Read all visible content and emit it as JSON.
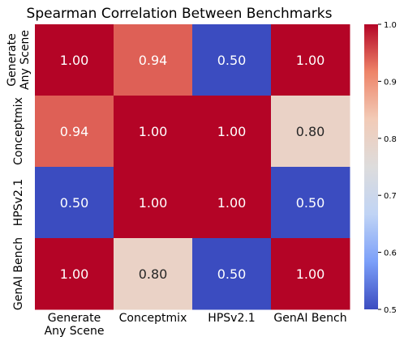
{
  "chart_data": {
    "type": "heatmap",
    "title": "Spearman Correlation Between Benchmarks",
    "row_labels": [
      [
        "Generate",
        "Any Scene"
      ],
      [
        "Conceptmix"
      ],
      [
        "HPSv2.1"
      ],
      [
        "GenAI Bench"
      ]
    ],
    "col_labels": [
      [
        "Generate",
        "Any Scene"
      ],
      [
        "Conceptmix"
      ],
      [
        "HPSv2.1"
      ],
      [
        "GenAI Bench"
      ]
    ],
    "values": [
      [
        1.0,
        0.94,
        0.5,
        1.0
      ],
      [
        0.94,
        1.0,
        1.0,
        0.8
      ],
      [
        0.5,
        1.0,
        1.0,
        0.5
      ],
      [
        1.0,
        0.8,
        0.5,
        1.0
      ]
    ],
    "cell_labels": [
      [
        "1.00",
        "0.94",
        "0.50",
        "1.00"
      ],
      [
        "0.94",
        "1.00",
        "1.00",
        "0.80"
      ],
      [
        "0.50",
        "1.00",
        "1.00",
        "0.50"
      ],
      [
        "1.00",
        "0.80",
        "0.50",
        "1.00"
      ]
    ],
    "colormap": "coolwarm",
    "vmin": 0.5,
    "vmax": 1.0,
    "colorbar": {
      "ticks": [
        0.5,
        0.6,
        0.7,
        0.8,
        0.9,
        1.0
      ],
      "tick_labels": [
        "0.5",
        "0.6",
        "0.7",
        "0.8",
        "0.9",
        "1.0"
      ],
      "placement": "right"
    },
    "colormap_stops": [
      "#3b4cc0",
      "#7b9ff9",
      "#c0d4f5",
      "#dddcdc",
      "#f2cbb7",
      "#ee8468",
      "#b40426"
    ],
    "grid": false
  }
}
